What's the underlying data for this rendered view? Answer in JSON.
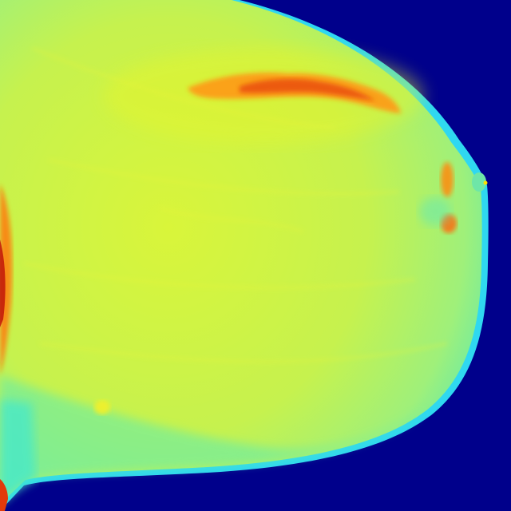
{
  "image": {
    "description_hidden": "",
    "colormap": "jet",
    "colors": {
      "background": "#00008b",
      "tissue_base": "#c8f24a",
      "tissue_edge": "#38f0c8",
      "tissue_dense": "#f4e11c",
      "hot": "#ff7a10",
      "hotter": "#e23a0a",
      "skin_line": "#1fb8ff"
    }
  }
}
